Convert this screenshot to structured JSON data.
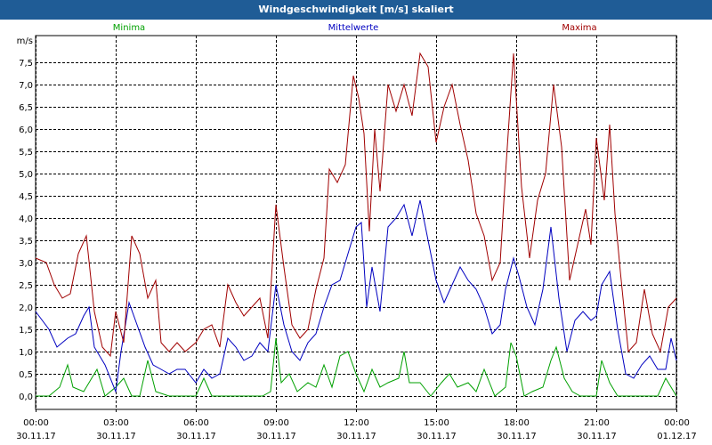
{
  "window": {
    "title": "Windgeschwindigkeit [m/s] skaliert"
  },
  "chart_data": {
    "type": "line",
    "title": "Windgeschwindigkeit [m/s] skaliert",
    "ylabel": "m/s",
    "xlabel": "",
    "ylim": [
      -0.3,
      8.1
    ],
    "yticks": [
      0.0,
      0.5,
      1.0,
      1.5,
      2.0,
      2.5,
      3.0,
      3.5,
      4.0,
      4.5,
      5.0,
      5.5,
      6.0,
      6.5,
      7.0,
      7.5
    ],
    "ytick_labels": [
      "0,0",
      "0,5",
      "1,0",
      "1,5",
      "2,0",
      "2,5",
      "3,0",
      "3,5",
      "4,0",
      "4,5",
      "5,0",
      "5,5",
      "6,0",
      "6,5",
      "7,0",
      "7,5"
    ],
    "xlim_hours": [
      0,
      24
    ],
    "xticks": [
      {
        "hour": 0,
        "time": "00:00",
        "date": "30.11.17"
      },
      {
        "hour": 3,
        "time": "03:00",
        "date": "30.11.17"
      },
      {
        "hour": 6,
        "time": "06:00",
        "date": "30.11.17"
      },
      {
        "hour": 9,
        "time": "09:00",
        "date": "30.11.17"
      },
      {
        "hour": 12,
        "time": "12:00",
        "date": "30.11.17"
      },
      {
        "hour": 15,
        "time": "15:00",
        "date": "30.11.17"
      },
      {
        "hour": 18,
        "time": "18:00",
        "date": "30.11.17"
      },
      {
        "hour": 21,
        "time": "21:00",
        "date": "30.11.17"
      },
      {
        "hour": 24,
        "time": "00:00",
        "date": "01.12.17"
      }
    ],
    "grid": true,
    "legend_position": "top",
    "series": [
      {
        "name": "Minima",
        "color": "#00a000",
        "points": [
          [
            0,
            0.0
          ],
          [
            0.5,
            0.0
          ],
          [
            0.9,
            0.2
          ],
          [
            1.2,
            0.7
          ],
          [
            1.4,
            0.2
          ],
          [
            1.8,
            0.1
          ],
          [
            2.0,
            0.3
          ],
          [
            2.3,
            0.6
          ],
          [
            2.6,
            0.0
          ],
          [
            3.0,
            0.2
          ],
          [
            3.3,
            0.4
          ],
          [
            3.6,
            0.0
          ],
          [
            3.9,
            0.0
          ],
          [
            4.2,
            0.8
          ],
          [
            4.5,
            0.1
          ],
          [
            5.0,
            0.0
          ],
          [
            5.5,
            0.0
          ],
          [
            6.0,
            0.0
          ],
          [
            6.3,
            0.4
          ],
          [
            6.6,
            0.0
          ],
          [
            7.0,
            0.0
          ],
          [
            7.5,
            0.0
          ],
          [
            8.0,
            0.0
          ],
          [
            8.5,
            0.0
          ],
          [
            8.8,
            0.1
          ],
          [
            9.0,
            1.3
          ],
          [
            9.2,
            0.3
          ],
          [
            9.5,
            0.5
          ],
          [
            9.8,
            0.1
          ],
          [
            10.2,
            0.3
          ],
          [
            10.5,
            0.2
          ],
          [
            10.8,
            0.7
          ],
          [
            11.1,
            0.2
          ],
          [
            11.4,
            0.9
          ],
          [
            11.7,
            1.0
          ],
          [
            12.0,
            0.5
          ],
          [
            12.3,
            0.1
          ],
          [
            12.6,
            0.6
          ],
          [
            12.9,
            0.2
          ],
          [
            13.2,
            0.3
          ],
          [
            13.6,
            0.4
          ],
          [
            13.8,
            1.0
          ],
          [
            14.0,
            0.3
          ],
          [
            14.4,
            0.3
          ],
          [
            14.8,
            0.0
          ],
          [
            15.2,
            0.3
          ],
          [
            15.5,
            0.5
          ],
          [
            15.8,
            0.2
          ],
          [
            16.2,
            0.3
          ],
          [
            16.5,
            0.1
          ],
          [
            16.8,
            0.6
          ],
          [
            17.2,
            0.0
          ],
          [
            17.6,
            0.2
          ],
          [
            17.8,
            1.2
          ],
          [
            18.0,
            0.9
          ],
          [
            18.3,
            0.0
          ],
          [
            18.6,
            0.1
          ],
          [
            19.0,
            0.2
          ],
          [
            19.3,
            0.8
          ],
          [
            19.5,
            1.1
          ],
          [
            19.8,
            0.4
          ],
          [
            20.1,
            0.1
          ],
          [
            20.4,
            0.0
          ],
          [
            20.7,
            0.0
          ],
          [
            21.0,
            0.0
          ],
          [
            21.2,
            0.8
          ],
          [
            21.5,
            0.3
          ],
          [
            21.8,
            0.0
          ],
          [
            22.3,
            0.0
          ],
          [
            22.7,
            0.0
          ],
          [
            23.0,
            0.0
          ],
          [
            23.3,
            0.0
          ],
          [
            23.6,
            0.4
          ],
          [
            24.0,
            0.0
          ]
        ]
      },
      {
        "name": "Mittelwerte",
        "color": "#0000c0",
        "points": [
          [
            0,
            1.9
          ],
          [
            0.5,
            1.5
          ],
          [
            0.8,
            1.1
          ],
          [
            1.2,
            1.3
          ],
          [
            1.5,
            1.4
          ],
          [
            1.8,
            1.8
          ],
          [
            2.0,
            2.0
          ],
          [
            2.2,
            1.1
          ],
          [
            2.6,
            0.7
          ],
          [
            3.0,
            0.1
          ],
          [
            3.2,
            1.0
          ],
          [
            3.5,
            2.1
          ],
          [
            3.8,
            1.6
          ],
          [
            4.1,
            1.1
          ],
          [
            4.4,
            0.7
          ],
          [
            4.7,
            0.6
          ],
          [
            5.0,
            0.5
          ],
          [
            5.3,
            0.6
          ],
          [
            5.6,
            0.6
          ],
          [
            6.0,
            0.3
          ],
          [
            6.3,
            0.6
          ],
          [
            6.6,
            0.4
          ],
          [
            6.9,
            0.5
          ],
          [
            7.2,
            1.3
          ],
          [
            7.5,
            1.1
          ],
          [
            7.8,
            0.8
          ],
          [
            8.1,
            0.9
          ],
          [
            8.4,
            1.2
          ],
          [
            8.7,
            1.0
          ],
          [
            9.0,
            2.5
          ],
          [
            9.3,
            1.6
          ],
          [
            9.6,
            1.0
          ],
          [
            9.9,
            0.8
          ],
          [
            10.2,
            1.2
          ],
          [
            10.5,
            1.4
          ],
          [
            10.8,
            2.0
          ],
          [
            11.1,
            2.5
          ],
          [
            11.4,
            2.6
          ],
          [
            11.7,
            3.2
          ],
          [
            12.0,
            3.8
          ],
          [
            12.2,
            3.9
          ],
          [
            12.4,
            2.0
          ],
          [
            12.6,
            2.9
          ],
          [
            12.9,
            1.9
          ],
          [
            13.2,
            3.8
          ],
          [
            13.5,
            4.0
          ],
          [
            13.8,
            4.3
          ],
          [
            14.1,
            3.6
          ],
          [
            14.4,
            4.4
          ],
          [
            14.7,
            3.5
          ],
          [
            15.0,
            2.6
          ],
          [
            15.3,
            2.1
          ],
          [
            15.6,
            2.5
          ],
          [
            15.9,
            2.9
          ],
          [
            16.2,
            2.6
          ],
          [
            16.5,
            2.4
          ],
          [
            16.8,
            2.0
          ],
          [
            17.1,
            1.4
          ],
          [
            17.4,
            1.6
          ],
          [
            17.6,
            2.4
          ],
          [
            17.9,
            3.1
          ],
          [
            18.1,
            2.7
          ],
          [
            18.4,
            2.0
          ],
          [
            18.7,
            1.6
          ],
          [
            19.0,
            2.4
          ],
          [
            19.3,
            3.8
          ],
          [
            19.6,
            2.2
          ],
          [
            19.9,
            1.0
          ],
          [
            20.2,
            1.7
          ],
          [
            20.5,
            1.9
          ],
          [
            20.8,
            1.7
          ],
          [
            21.0,
            1.8
          ],
          [
            21.2,
            2.5
          ],
          [
            21.5,
            2.8
          ],
          [
            21.8,
            1.5
          ],
          [
            22.1,
            0.5
          ],
          [
            22.4,
            0.4
          ],
          [
            22.7,
            0.7
          ],
          [
            23.0,
            0.9
          ],
          [
            23.3,
            0.6
          ],
          [
            23.6,
            0.6
          ],
          [
            23.8,
            1.3
          ],
          [
            24.0,
            0.8
          ]
        ]
      },
      {
        "name": "Maxima",
        "color": "#a00000",
        "points": [
          [
            0,
            3.1
          ],
          [
            0.4,
            3.0
          ],
          [
            0.7,
            2.5
          ],
          [
            1.0,
            2.2
          ],
          [
            1.3,
            2.3
          ],
          [
            1.6,
            3.2
          ],
          [
            1.9,
            3.6
          ],
          [
            2.2,
            1.9
          ],
          [
            2.5,
            1.1
          ],
          [
            2.8,
            0.9
          ],
          [
            3.0,
            1.9
          ],
          [
            3.3,
            1.2
          ],
          [
            3.6,
            3.6
          ],
          [
            3.9,
            3.2
          ],
          [
            4.2,
            2.2
          ],
          [
            4.5,
            2.6
          ],
          [
            4.7,
            1.2
          ],
          [
            5.0,
            1.0
          ],
          [
            5.3,
            1.2
          ],
          [
            5.6,
            1.0
          ],
          [
            6.0,
            1.2
          ],
          [
            6.3,
            1.5
          ],
          [
            6.6,
            1.6
          ],
          [
            6.9,
            1.1
          ],
          [
            7.2,
            2.5
          ],
          [
            7.5,
            2.1
          ],
          [
            7.8,
            1.8
          ],
          [
            8.1,
            2.0
          ],
          [
            8.4,
            2.2
          ],
          [
            8.7,
            1.3
          ],
          [
            9.0,
            4.3
          ],
          [
            9.3,
            2.9
          ],
          [
            9.6,
            1.6
          ],
          [
            9.9,
            1.3
          ],
          [
            10.2,
            1.5
          ],
          [
            10.5,
            2.4
          ],
          [
            10.8,
            3.1
          ],
          [
            11.0,
            5.1
          ],
          [
            11.3,
            4.8
          ],
          [
            11.6,
            5.2
          ],
          [
            11.9,
            7.2
          ],
          [
            12.1,
            6.7
          ],
          [
            12.3,
            5.9
          ],
          [
            12.5,
            3.7
          ],
          [
            12.7,
            6.0
          ],
          [
            12.9,
            4.6
          ],
          [
            13.2,
            7.0
          ],
          [
            13.5,
            6.4
          ],
          [
            13.8,
            7.0
          ],
          [
            14.1,
            6.3
          ],
          [
            14.4,
            7.7
          ],
          [
            14.7,
            7.4
          ],
          [
            15.0,
            5.7
          ],
          [
            15.3,
            6.5
          ],
          [
            15.6,
            7.0
          ],
          [
            15.9,
            6.1
          ],
          [
            16.2,
            5.3
          ],
          [
            16.5,
            4.1
          ],
          [
            16.8,
            3.6
          ],
          [
            17.1,
            2.6
          ],
          [
            17.4,
            3.0
          ],
          [
            17.6,
            5.0
          ],
          [
            17.9,
            7.7
          ],
          [
            18.2,
            4.7
          ],
          [
            18.5,
            3.1
          ],
          [
            18.8,
            4.4
          ],
          [
            19.1,
            5.0
          ],
          [
            19.4,
            7.0
          ],
          [
            19.7,
            5.6
          ],
          [
            20.0,
            2.6
          ],
          [
            20.3,
            3.4
          ],
          [
            20.6,
            4.2
          ],
          [
            20.8,
            3.4
          ],
          [
            21.0,
            5.8
          ],
          [
            21.3,
            4.4
          ],
          [
            21.5,
            6.1
          ],
          [
            21.7,
            4.1
          ],
          [
            21.9,
            2.8
          ],
          [
            22.2,
            1.0
          ],
          [
            22.5,
            1.2
          ],
          [
            22.8,
            2.4
          ],
          [
            23.1,
            1.4
          ],
          [
            23.4,
            1.0
          ],
          [
            23.7,
            2.0
          ],
          [
            24.0,
            2.2
          ]
        ]
      }
    ]
  }
}
